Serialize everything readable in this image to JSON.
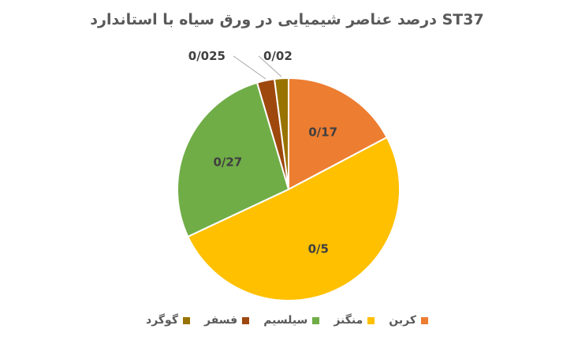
{
  "chart_data": {
    "type": "pie",
    "title": "درصد عناصر شیمیایی در ورق سیاه با استاندارد ST37",
    "categories": [
      "کربن",
      "منگنز",
      "سیلسیم",
      "فسفر",
      "گوگرد"
    ],
    "values": [
      0.17,
      0.5,
      0.27,
      0.025,
      0.02
    ],
    "data_labels": [
      "0/17",
      "0/5",
      "0/27",
      "0/025",
      "0/02"
    ],
    "colors": [
      "#ED7D31",
      "#FFC000",
      "#70AD47",
      "#9E480E",
      "#997300"
    ],
    "legend_position": "bottom"
  }
}
